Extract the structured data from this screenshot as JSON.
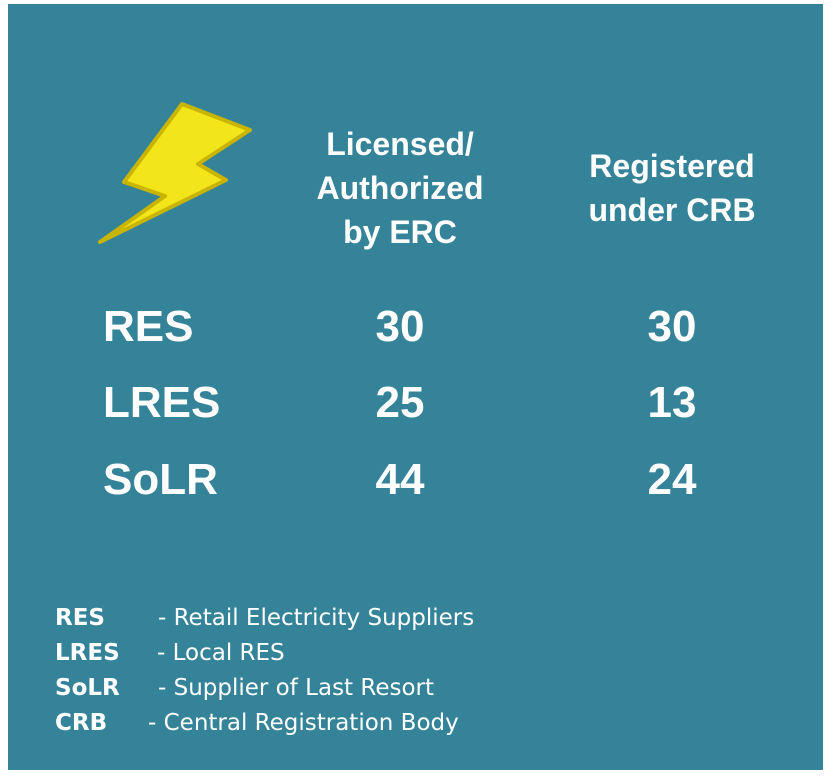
{
  "table": {
    "columns": [
      {
        "lines": [
          "Licensed/",
          "Authorized",
          "by ERC"
        ]
      },
      {
        "lines": [
          "Registered",
          "under CRB"
        ]
      }
    ],
    "rows": [
      {
        "label": "RES",
        "values": [
          30,
          30
        ]
      },
      {
        "label": "LRES",
        "values": [
          25,
          13
        ]
      },
      {
        "label": "SoLR",
        "values": [
          44,
          24
        ]
      }
    ]
  },
  "legend": [
    {
      "abbr": "RES",
      "definition": "- Retail Electricity Suppliers"
    },
    {
      "abbr": "LRES",
      "definition": "-  Local RES"
    },
    {
      "abbr": "SoLR",
      "definition": "-  Supplier of Last Resort"
    },
    {
      "abbr": "CRB",
      "definition": "- Central Registration Body"
    }
  ]
}
